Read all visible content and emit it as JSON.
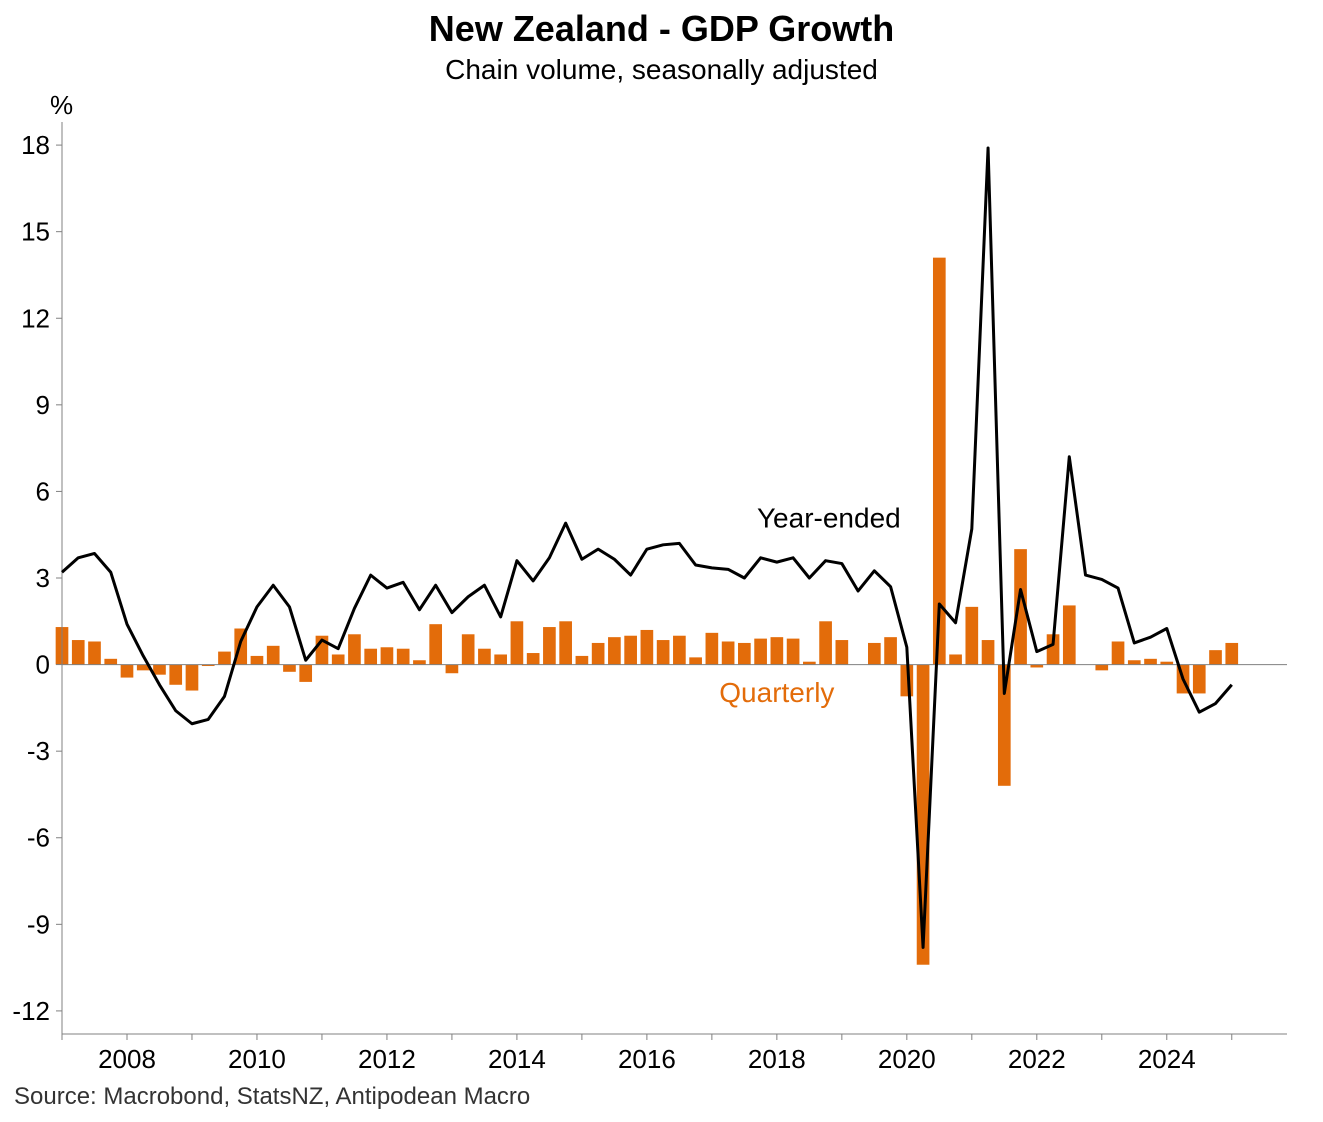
{
  "title": "New Zealand - GDP Growth",
  "subtitle": "Chain volume, seasonally adjusted",
  "y_unit": "%",
  "source": "Source: Macrobond, StatsNZ, Antipodean Macro",
  "colors": {
    "quarterly": "#E36C0A",
    "year_ended": "#000000",
    "axis": "#808080"
  },
  "chart_data": {
    "type": "bar+line",
    "title": "New Zealand - GDP Growth",
    "subtitle": "Chain volume, seasonally adjusted",
    "ylabel": "%",
    "ylim": [
      -12.8,
      18.8
    ],
    "yticks": [
      18,
      15,
      12,
      9,
      6,
      3,
      0,
      -3,
      -6,
      -9,
      -12
    ],
    "xlim": [
      2007.0,
      2025.85
    ],
    "xticks": [
      2008,
      2010,
      2012,
      2014,
      2016,
      2018,
      2020,
      2022,
      2024
    ],
    "x": [
      2007.0,
      2007.25,
      2007.5,
      2007.75,
      2008.0,
      2008.25,
      2008.5,
      2008.75,
      2009.0,
      2009.25,
      2009.5,
      2009.75,
      2010.0,
      2010.25,
      2010.5,
      2010.75,
      2011.0,
      2011.25,
      2011.5,
      2011.75,
      2012.0,
      2012.25,
      2012.5,
      2012.75,
      2013.0,
      2013.25,
      2013.5,
      2013.75,
      2014.0,
      2014.25,
      2014.5,
      2014.75,
      2015.0,
      2015.25,
      2015.5,
      2015.75,
      2016.0,
      2016.25,
      2016.5,
      2016.75,
      2017.0,
      2017.25,
      2017.5,
      2017.75,
      2018.0,
      2018.25,
      2018.5,
      2018.75,
      2019.0,
      2019.25,
      2019.5,
      2019.75,
      2020.0,
      2020.25,
      2020.5,
      2020.75,
      2021.0,
      2021.25,
      2021.5,
      2021.75,
      2022.0,
      2022.25,
      2022.5,
      2022.75,
      2023.0,
      2023.25,
      2023.5,
      2023.75,
      2024.0,
      2024.25,
      2024.5,
      2024.75,
      2025.0
    ],
    "series": [
      {
        "name": "Quarterly",
        "type": "bar",
        "values": [
          1.3,
          0.85,
          0.8,
          0.2,
          -0.45,
          -0.2,
          -0.35,
          -0.7,
          -0.9,
          -0.05,
          0.45,
          1.25,
          0.3,
          0.65,
          -0.25,
          -0.6,
          1.0,
          0.35,
          1.05,
          0.55,
          0.6,
          0.55,
          0.15,
          1.4,
          -0.3,
          1.05,
          0.55,
          0.35,
          1.5,
          0.4,
          1.3,
          1.5,
          0.3,
          0.75,
          0.95,
          1.0,
          1.2,
          0.85,
          1.0,
          0.25,
          1.1,
          0.8,
          0.75,
          0.9,
          0.95,
          0.9,
          0.1,
          1.5,
          0.85,
          0.0,
          0.75,
          0.95,
          -1.1,
          -10.4,
          14.1,
          0.35,
          2.0,
          0.85,
          -4.2,
          4.0,
          -0.1,
          1.05,
          2.05,
          0.0,
          -0.2,
          0.8,
          0.15,
          0.2,
          0.1,
          -1.0,
          -1.0,
          0.5,
          0.75
        ]
      },
      {
        "name": "Year-ended",
        "type": "line",
        "values": [
          3.2,
          3.7,
          3.85,
          3.2,
          1.4,
          0.3,
          -0.7,
          -1.6,
          -2.05,
          -1.9,
          -1.1,
          0.8,
          2.0,
          2.75,
          2.0,
          0.15,
          0.85,
          0.55,
          1.95,
          3.1,
          2.65,
          2.85,
          1.9,
          2.75,
          1.8,
          2.35,
          2.75,
          1.65,
          3.6,
          2.9,
          3.7,
          4.9,
          3.65,
          4.0,
          3.65,
          3.1,
          4.0,
          4.15,
          4.2,
          3.45,
          3.35,
          3.3,
          3.0,
          3.7,
          3.55,
          3.7,
          3.0,
          3.6,
          3.5,
          2.55,
          3.25,
          2.7,
          0.6,
          -9.8,
          2.1,
          1.45,
          4.7,
          17.9,
          -1.0,
          2.6,
          0.45,
          0.7,
          7.2,
          3.1,
          2.95,
          2.65,
          0.75,
          0.95,
          1.25,
          -0.5,
          -1.65,
          -1.35,
          -0.7
        ]
      }
    ],
    "annotations": [
      {
        "text": "Year-ended",
        "x": 2018.8,
        "y": 4.75
      },
      {
        "text": "Quarterly",
        "x": 2018.0,
        "y": -1.3
      }
    ],
    "grid": false,
    "legend": "inline labels"
  }
}
